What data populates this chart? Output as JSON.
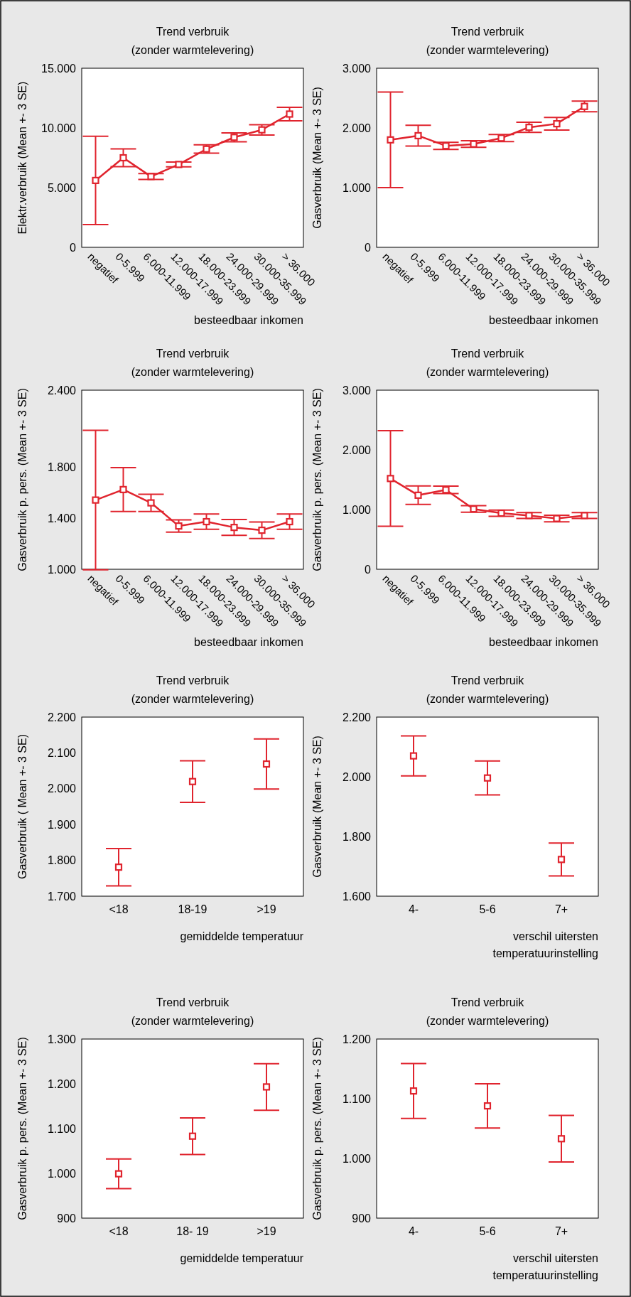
{
  "chart_data": [
    {
      "type": "line",
      "title": "Trend verbruik",
      "subtitle": "(zonder warmtelevering)",
      "xlabel": "besteedbaar inkomen",
      "ylabel": "Elektr.verbruik (Mean +- 3 SE)",
      "categories": [
        "negatief",
        "0-5.999",
        "6.000-11.999",
        "12.000-17.999",
        "18.000-23.999",
        "24.000-29.999",
        "30.000-35.999",
        "> 36.000"
      ],
      "marker": "square",
      "ylim": [
        0,
        15000
      ],
      "yticks": [
        {
          "value": 0,
          "label": "0"
        },
        {
          "value": 5000,
          "label": "5.000"
        },
        {
          "value": 10000,
          "label": "10.000"
        },
        {
          "value": 15000,
          "label": "15.000"
        }
      ],
      "series": [
        {
          "color": "#e0242e",
          "values": [
            5600,
            7500,
            5930,
            6940,
            8230,
            9210,
            9840,
            11160
          ],
          "errors": [
            3700,
            750,
            250,
            200,
            350,
            370,
            430,
            560
          ]
        }
      ]
    },
    {
      "type": "line",
      "title": "Trend verbruik",
      "subtitle": "(zonder warmtelevering)",
      "xlabel": "besteedbaar inkomen",
      "ylabel": "Gasverbruik (Mean +- 3 SE)",
      "categories": [
        "negatief",
        "0-5.999",
        "6.000-11.999",
        "12.000-17.999",
        "18.000-23.999",
        "24.000-29.999",
        "30.000-35.999",
        "> 36.000"
      ],
      "marker": "square",
      "ylim": [
        0,
        3000
      ],
      "yticks": [
        {
          "value": 0,
          "label": "0"
        },
        {
          "value": 1000,
          "label": "1.000"
        },
        {
          "value": 2000,
          "label": "2.000"
        },
        {
          "value": 3000,
          "label": "3.000"
        }
      ],
      "series": [
        {
          "color": "#e0242e",
          "values": [
            1800,
            1870,
            1700,
            1730,
            1830,
            2010,
            2070,
            2360
          ],
          "errors": [
            800,
            175,
            60,
            55,
            60,
            85,
            105,
            90
          ]
        }
      ]
    },
    {
      "type": "line",
      "title": "Trend verbruik",
      "subtitle": "(zonder warmtelevering)",
      "xlabel": "besteedbaar inkomen",
      "ylabel": "Gasverbruik p. pers. (Mean +- 3 SE)",
      "categories": [
        "negatief",
        "0-5.999",
        "6.000-11.999",
        "12.000-17.999",
        "18.000-23.999",
        "24.000-29.999",
        "30.000-35.999",
        "> 36.000"
      ],
      "marker": "square",
      "ylim": [
        1000,
        2400
      ],
      "yticks": [
        {
          "value": 1000,
          "label": "1.000"
        },
        {
          "value": 1400,
          "label": "1.400"
        },
        {
          "value": 1800,
          "label": "1.800"
        },
        {
          "value": 2400,
          "label": "2.400"
        }
      ],
      "series": [
        {
          "color": "#e0242e",
          "values": [
            1541,
            1623,
            1519,
            1338,
            1372,
            1327,
            1305,
            1372
          ],
          "errors": [
            545,
            172,
            67,
            48,
            60,
            62,
            65,
            60
          ]
        }
      ]
    },
    {
      "type": "line",
      "title": "Trend verbruik",
      "subtitle": "(zonder warmtelevering)",
      "xlabel": "besteedbaar inkomen",
      "ylabel": "Gasverbruik p. pers. (Mean +- 3 SE)",
      "categories": [
        "negatief",
        "0-5.999",
        "6.000-11.999",
        "12.000-17.999",
        "18.000-23.999",
        "24.000-29.999",
        "30.000-35.999",
        "> 36.000"
      ],
      "marker": "square",
      "ylim": [
        0,
        3000
      ],
      "yticks": [
        {
          "value": 0,
          "label": "0"
        },
        {
          "value": 1000,
          "label": "1.000"
        },
        {
          "value": 2000,
          "label": "2.000"
        },
        {
          "value": 3000,
          "label": "3.000"
        }
      ],
      "series": [
        {
          "color": "#e0242e",
          "values": [
            1520,
            1240,
            1330,
            1010,
            940,
            900,
            850,
            900
          ],
          "errors": [
            800,
            155,
            62,
            55,
            52,
            48,
            55,
            48
          ]
        }
      ]
    },
    {
      "type": "scatter",
      "title": "Trend verbruik",
      "subtitle": "(zonder warmtelevering)",
      "xlabel": "gemiddelde temperatuur",
      "ylabel": "Gasverbruik ( Mean +- 3 SE)",
      "categories": [
        "<18",
        "18-19",
        ">19"
      ],
      "marker": "square",
      "ylim": [
        1700,
        2200
      ],
      "yticks": [
        {
          "value": 1700,
          "label": "1.700"
        },
        {
          "value": 1800,
          "label": "1.800"
        },
        {
          "value": 1900,
          "label": "1.900"
        },
        {
          "value": 2000,
          "label": "2.000"
        },
        {
          "value": 2100,
          "label": "2.100"
        },
        {
          "value": 2200,
          "label": "2.200"
        }
      ],
      "series": [
        {
          "color": "#e0242e",
          "values": [
            1781,
            2020,
            2069
          ],
          "errors": [
            52,
            58,
            70
          ]
        }
      ]
    },
    {
      "type": "scatter",
      "title": "Trend verbruik",
      "subtitle": "(zonder warmtelevering)",
      "xlabel": "verschil uitersten temperatuurinstelling",
      "ylabel": "Gasverbruik (Mean +- 3 SE)",
      "categories": [
        "4-",
        "5-6",
        "7+"
      ],
      "marker": "square",
      "ylim": [
        1600,
        2200
      ],
      "yticks": [
        {
          "value": 1600,
          "label": "1.600"
        },
        {
          "value": 1800,
          "label": "1.800"
        },
        {
          "value": 2000,
          "label": "2.000"
        },
        {
          "value": 2200,
          "label": "2.200"
        }
      ],
      "series": [
        {
          "color": "#e0242e",
          "values": [
            2070,
            1996,
            1723
          ],
          "errors": [
            67,
            57,
            55
          ]
        }
      ]
    },
    {
      "type": "scatter",
      "title": "Trend verbruik",
      "subtitle": "(zonder warmtelevering)",
      "xlabel": "gemiddelde temperatuur",
      "ylabel": "Gasverbruik p. pers. (Mean +- 3 SE)",
      "categories": [
        "<18",
        "18- 19",
        ">19"
      ],
      "marker": "square",
      "ylim": [
        900,
        1300
      ],
      "yticks": [
        {
          "value": 900,
          "label": "900"
        },
        {
          "value": 1000,
          "label": "1.000"
        },
        {
          "value": 1100,
          "label": "1.100"
        },
        {
          "value": 1200,
          "label": "1.200"
        },
        {
          "value": 1300,
          "label": "1.300"
        }
      ],
      "series": [
        {
          "color": "#e0242e",
          "values": [
            999,
            1083,
            1193
          ],
          "errors": [
            33,
            41,
            52
          ]
        }
      ]
    },
    {
      "type": "scatter",
      "title": "Trend verbruik",
      "subtitle": "(zonder warmtelevering)",
      "xlabel": "verschil uitersten temperatuurinstelling",
      "ylabel": "Gasverbruik p. pers. (Mean +- 3 SE)",
      "categories": [
        "4-",
        "5-6",
        "7+"
      ],
      "marker": "square",
      "ylim": [
        900,
        1200
      ],
      "yticks": [
        {
          "value": 900,
          "label": "900"
        },
        {
          "value": 1000,
          "label": "1.000"
        },
        {
          "value": 1100,
          "label": "1.100"
        },
        {
          "value": 1200,
          "label": "1.200"
        }
      ],
      "series": [
        {
          "color": "#e0242e",
          "values": [
            1113,
            1088,
            1033
          ],
          "errors": [
            46,
            37,
            39
          ]
        }
      ]
    }
  ]
}
